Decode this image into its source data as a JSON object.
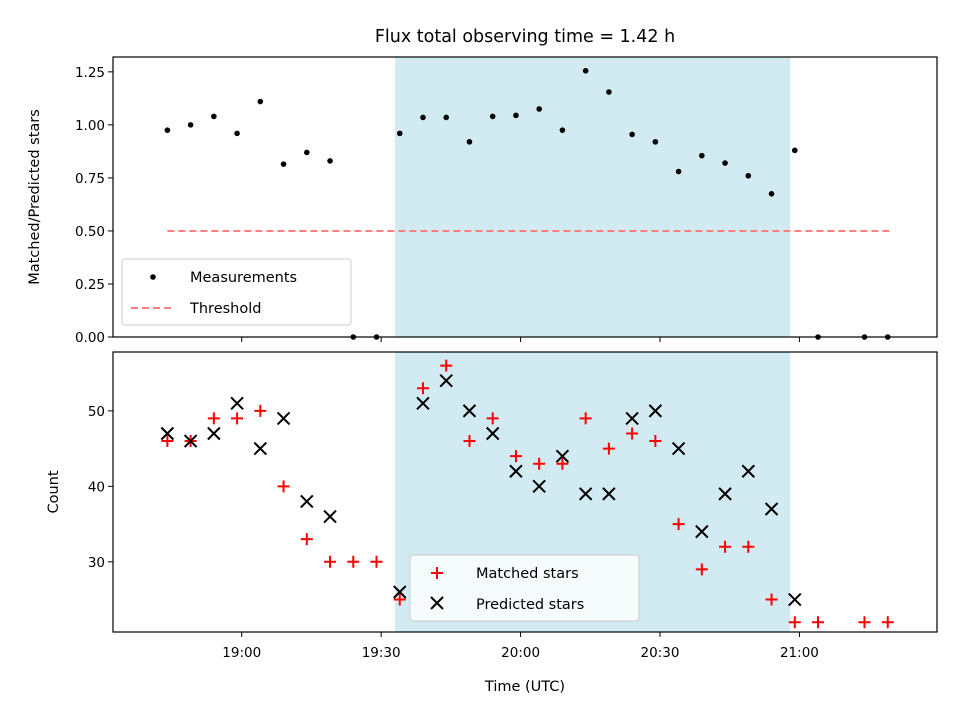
{
  "chart_data": [
    {
      "type": "scatter",
      "title": "Flux total observing time = 1.42 h",
      "ylabel": "Matched/Predicted stars",
      "xlabel": "",
      "ylim": [
        0,
        1.32
      ],
      "yticks": [
        "0.00",
        "0.25",
        "0.50",
        "0.75",
        "1.00",
        "1.25"
      ],
      "shaded_span": {
        "start": "19:33",
        "end": "20:58",
        "color": "#add8e6"
      },
      "threshold": {
        "value": 0.5,
        "xstart": "18:44",
        "xend": "21:20",
        "color": "#ff7f7f",
        "name": "Threshold"
      },
      "legend_position": "lower-left",
      "series": [
        {
          "name": "Measurements",
          "marker": "dot",
          "color": "#000000",
          "points": [
            {
              "x": "18:44",
              "y": 0.975
            },
            {
              "x": "18:49",
              "y": 1.0
            },
            {
              "x": "18:54",
              "y": 1.04
            },
            {
              "x": "18:59",
              "y": 0.96
            },
            {
              "x": "19:04",
              "y": 1.11
            },
            {
              "x": "19:09",
              "y": 0.815
            },
            {
              "x": "19:14",
              "y": 0.87
            },
            {
              "x": "19:19",
              "y": 0.83
            },
            {
              "x": "19:24",
              "y": 0.0
            },
            {
              "x": "19:29",
              "y": 0.0
            },
            {
              "x": "19:34",
              "y": 0.96
            },
            {
              "x": "19:39",
              "y": 1.035
            },
            {
              "x": "19:44",
              "y": 1.035
            },
            {
              "x": "19:49",
              "y": 0.92
            },
            {
              "x": "19:54",
              "y": 1.04
            },
            {
              "x": "19:59",
              "y": 1.045
            },
            {
              "x": "20:04",
              "y": 1.075
            },
            {
              "x": "20:09",
              "y": 0.975
            },
            {
              "x": "20:14",
              "y": 1.255
            },
            {
              "x": "20:19",
              "y": 1.155
            },
            {
              "x": "20:24",
              "y": 0.955
            },
            {
              "x": "20:29",
              "y": 0.92
            },
            {
              "x": "20:34",
              "y": 0.78
            },
            {
              "x": "20:39",
              "y": 0.855
            },
            {
              "x": "20:44",
              "y": 0.82
            },
            {
              "x": "20:49",
              "y": 0.76
            },
            {
              "x": "20:54",
              "y": 0.675
            },
            {
              "x": "20:59",
              "y": 0.88
            },
            {
              "x": "21:04",
              "y": 0.0
            },
            {
              "x": "21:14",
              "y": 0.0
            },
            {
              "x": "21:19",
              "y": 0.0
            }
          ]
        }
      ]
    },
    {
      "type": "scatter",
      "title": "",
      "ylabel": "Count",
      "xlabel": "Time (UTC)",
      "ylim": [
        20.7,
        57.8
      ],
      "yticks": [
        "30",
        "40",
        "50"
      ],
      "xticks": [
        "19:00",
        "19:30",
        "20:00",
        "20:30",
        "21:00"
      ],
      "shaded_span": {
        "start": "19:33",
        "end": "20:58",
        "color": "#add8e6"
      },
      "legend_position": "lower-center",
      "series": [
        {
          "name": "Matched stars",
          "marker": "plus",
          "color": "#ff0000",
          "points": [
            {
              "x": "18:44",
              "y": 46
            },
            {
              "x": "18:49",
              "y": 46
            },
            {
              "x": "18:54",
              "y": 49
            },
            {
              "x": "18:59",
              "y": 49
            },
            {
              "x": "19:04",
              "y": 50
            },
            {
              "x": "19:09",
              "y": 40
            },
            {
              "x": "19:14",
              "y": 33
            },
            {
              "x": "19:19",
              "y": 30
            },
            {
              "x": "19:24",
              "y": 30
            },
            {
              "x": "19:29",
              "y": 30
            },
            {
              "x": "19:34",
              "y": 25
            },
            {
              "x": "19:39",
              "y": 53
            },
            {
              "x": "19:44",
              "y": 56
            },
            {
              "x": "19:49",
              "y": 46
            },
            {
              "x": "19:54",
              "y": 49
            },
            {
              "x": "19:59",
              "y": 44
            },
            {
              "x": "20:04",
              "y": 43
            },
            {
              "x": "20:09",
              "y": 43
            },
            {
              "x": "20:14",
              "y": 49
            },
            {
              "x": "20:19",
              "y": 45
            },
            {
              "x": "20:24",
              "y": 47
            },
            {
              "x": "20:29",
              "y": 46
            },
            {
              "x": "20:34",
              "y": 35
            },
            {
              "x": "20:39",
              "y": 29
            },
            {
              "x": "20:44",
              "y": 32
            },
            {
              "x": "20:49",
              "y": 32
            },
            {
              "x": "20:54",
              "y": 25
            },
            {
              "x": "20:59",
              "y": 22
            },
            {
              "x": "21:04",
              "y": 22
            },
            {
              "x": "21:14",
              "y": 22
            },
            {
              "x": "21:19",
              "y": 22
            }
          ]
        },
        {
          "name": "Predicted stars",
          "marker": "x",
          "color": "#000000",
          "points": [
            {
              "x": "18:44",
              "y": 47
            },
            {
              "x": "18:49",
              "y": 46
            },
            {
              "x": "18:54",
              "y": 47
            },
            {
              "x": "18:59",
              "y": 51
            },
            {
              "x": "19:04",
              "y": 45
            },
            {
              "x": "19:09",
              "y": 49
            },
            {
              "x": "19:14",
              "y": 38
            },
            {
              "x": "19:19",
              "y": 36
            },
            {
              "x": "19:34",
              "y": 26
            },
            {
              "x": "19:39",
              "y": 51
            },
            {
              "x": "19:44",
              "y": 54
            },
            {
              "x": "19:49",
              "y": 50
            },
            {
              "x": "19:54",
              "y": 47
            },
            {
              "x": "19:59",
              "y": 42
            },
            {
              "x": "20:04",
              "y": 40
            },
            {
              "x": "20:09",
              "y": 44
            },
            {
              "x": "20:14",
              "y": 39
            },
            {
              "x": "20:19",
              "y": 39
            },
            {
              "x": "20:24",
              "y": 49
            },
            {
              "x": "20:29",
              "y": 50
            },
            {
              "x": "20:34",
              "y": 45
            },
            {
              "x": "20:39",
              "y": 34
            },
            {
              "x": "20:44",
              "y": 39
            },
            {
              "x": "20:49",
              "y": 42
            },
            {
              "x": "20:54",
              "y": 37
            },
            {
              "x": "20:59",
              "y": 25
            }
          ]
        }
      ]
    }
  ]
}
